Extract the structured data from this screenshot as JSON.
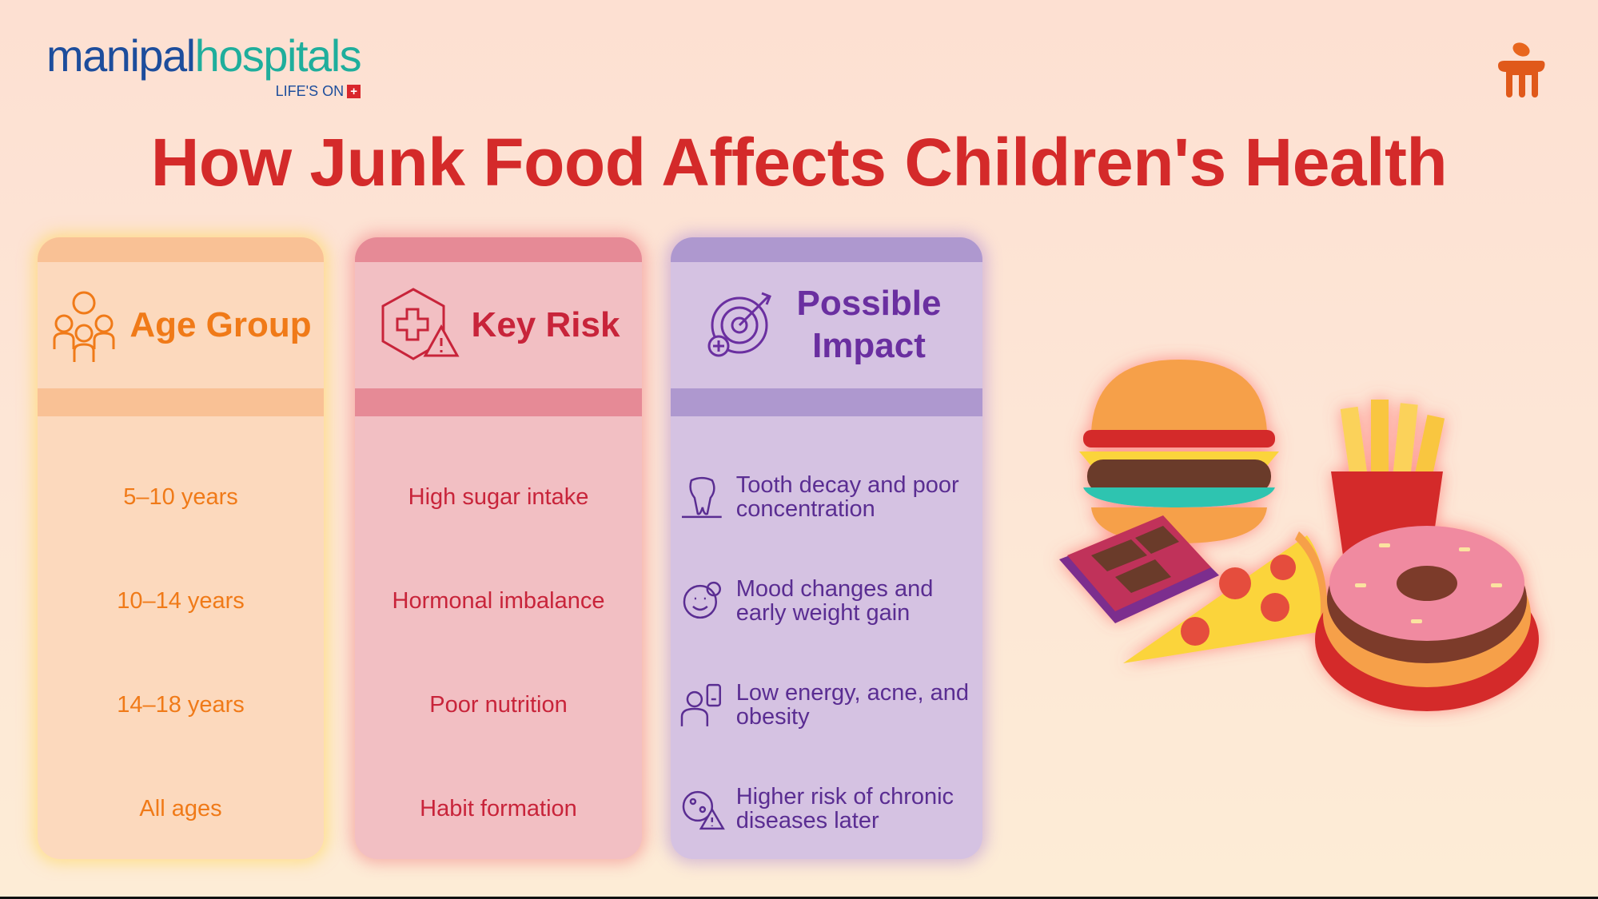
{
  "logo": {
    "part1": "manipal",
    "part2": "hospitals",
    "tagline": "LIFE'S ON",
    "cross": "+"
  },
  "title": "How Junk Food Affects Children's Health",
  "columns": [
    {
      "header": "Age Group",
      "icon": "family-icon",
      "rows": [
        "5–10 years",
        "10–14 years",
        "14–18 years",
        "All ages"
      ]
    },
    {
      "header": "Key Risk",
      "icon": "medical-warning-icon",
      "rows": [
        "High sugar intake",
        "Hormonal imbalance",
        "Poor nutrition",
        "Habit formation"
      ]
    },
    {
      "header": "Possible Impact",
      "icon": "target-health-icon",
      "rows": [
        {
          "icon": "tooth-decay-icon",
          "text": "Tooth decay and poor concentration"
        },
        {
          "icon": "mood-icon",
          "text": "Mood changes and early weight gain"
        },
        {
          "icon": "low-energy-icon",
          "text": "Low energy, acne, and obesity"
        },
        {
          "icon": "chronic-disease-icon",
          "text": "Higher risk of chronic diseases later"
        }
      ]
    }
  ],
  "colors": {
    "title": "#d42a2a",
    "age": "#f07a18",
    "risk": "#c8243a",
    "impact": "#6a2fa0"
  }
}
